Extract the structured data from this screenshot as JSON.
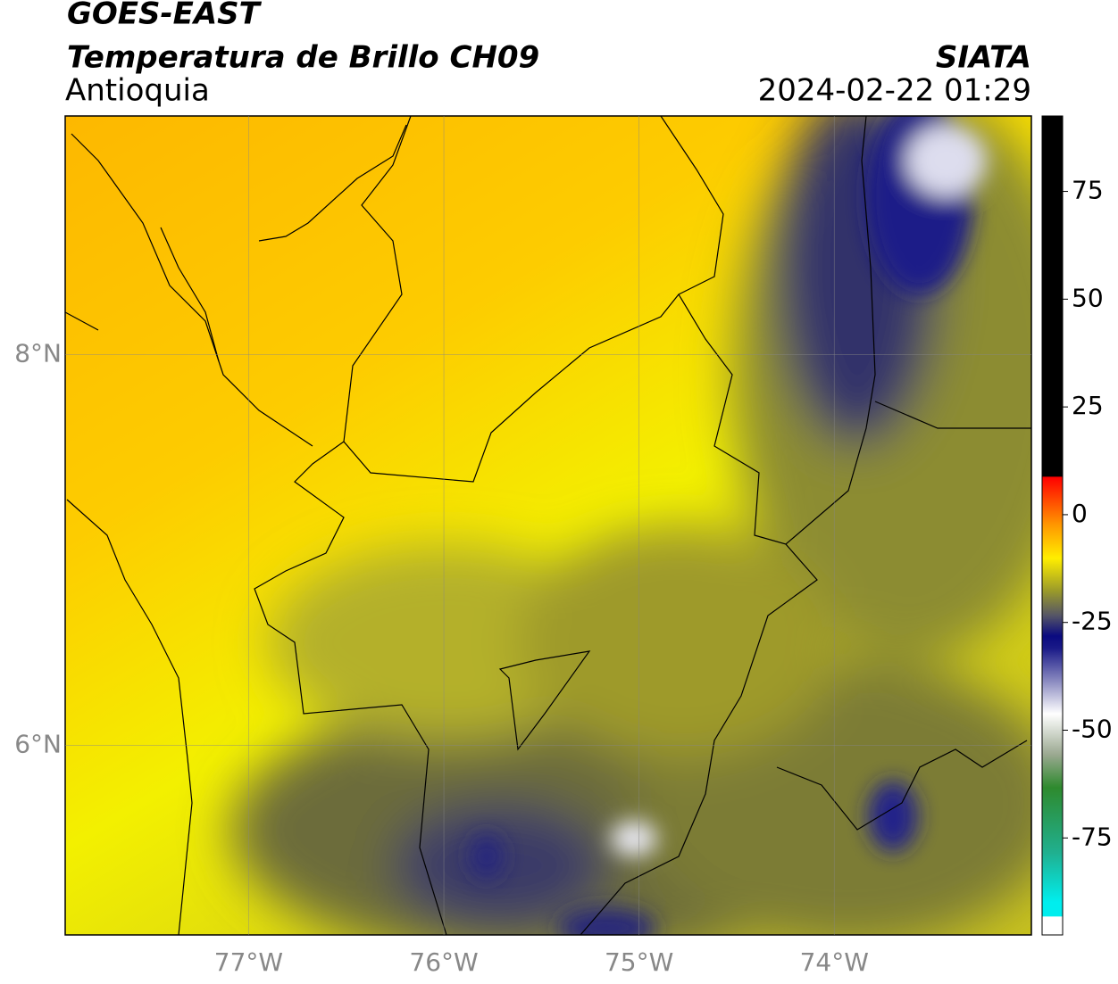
{
  "header": {
    "satellite": "GOES-EAST",
    "product": "Temperatura de Brillo CH09",
    "region": "Antioquia",
    "agency": "SIATA",
    "datetime": "2024-02-22 01:29"
  },
  "map": {
    "lon_range": [
      -77.94,
      -72.99
    ],
    "lat_range": [
      5.03,
      9.22
    ],
    "lon_ticks": [
      {
        "value": -77,
        "label": "77°W"
      },
      {
        "value": -76,
        "label": "76°W"
      },
      {
        "value": -75,
        "label": "75°W"
      },
      {
        "value": -74,
        "label": "74°W"
      }
    ],
    "lat_ticks": [
      {
        "value": 8,
        "label": "8°N"
      },
      {
        "value": 6,
        "label": "6°N"
      }
    ]
  },
  "colorbar": {
    "range": [
      -97.5,
      92.5
    ],
    "ticks": [
      75,
      50,
      25,
      0,
      -25,
      -50,
      -75
    ]
  }
}
